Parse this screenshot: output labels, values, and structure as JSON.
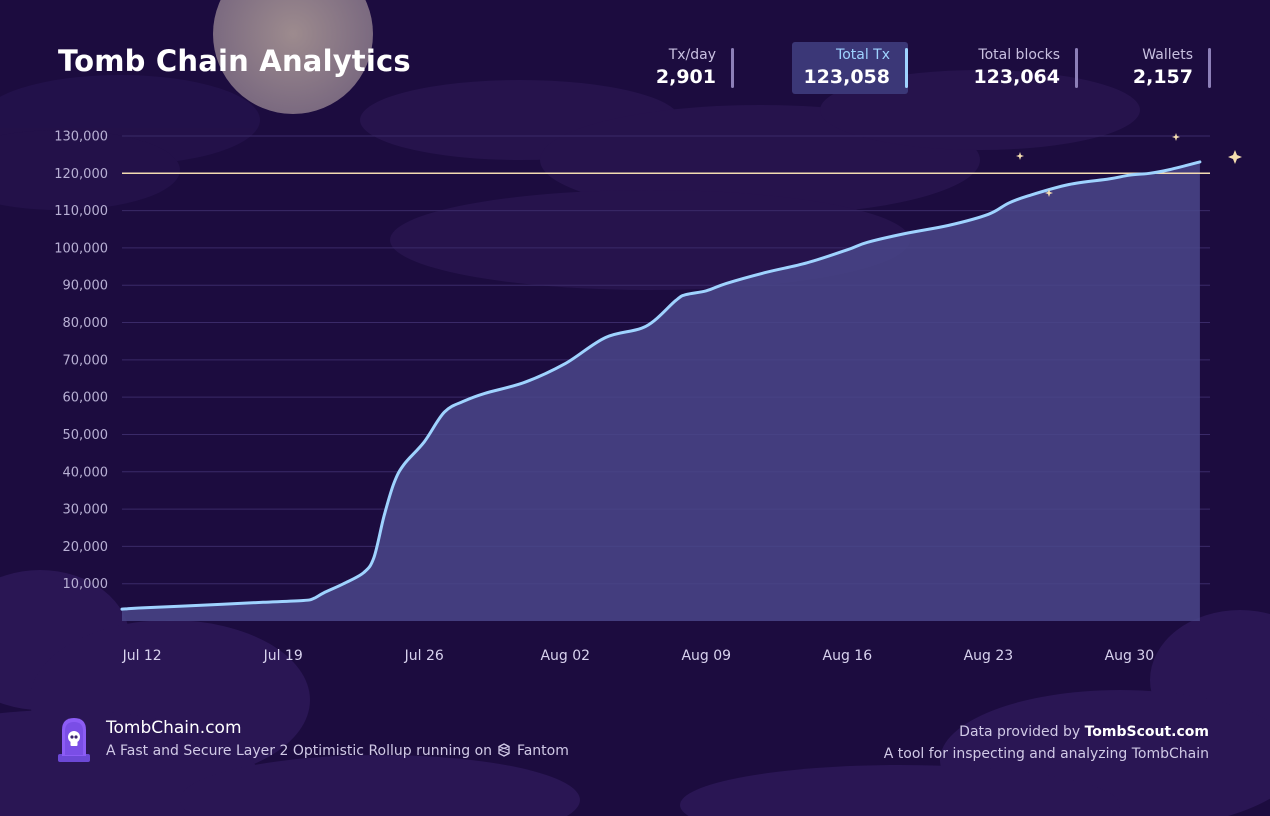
{
  "header": {
    "title": "Tomb Chain Analytics",
    "stats": [
      {
        "label": "Tx/day",
        "value": "2,901",
        "active": false
      },
      {
        "label": "Total Tx",
        "value": "123,058",
        "active": true
      },
      {
        "label": "Total blocks",
        "value": "123,064",
        "active": false
      },
      {
        "label": "Wallets",
        "value": "2,157",
        "active": false
      }
    ]
  },
  "chart_data": {
    "type": "area",
    "title": "Total Tx",
    "xlabel": "",
    "ylabel": "",
    "ylim": [
      0,
      130000
    ],
    "yticks": [
      "10,000",
      "20,000",
      "30,000",
      "40,000",
      "50,000",
      "60,000",
      "70,000",
      "80,000",
      "90,000",
      "100,000",
      "110,000",
      "120,000",
      "130,000"
    ],
    "ytick_values": [
      10000,
      20000,
      30000,
      40000,
      50000,
      60000,
      70000,
      80000,
      90000,
      100000,
      110000,
      120000,
      130000
    ],
    "xticks": [
      "Jul 12",
      "Jul 19",
      "Jul 26",
      "Aug 02",
      "Aug 09",
      "Aug 16",
      "Aug 23",
      "Aug 30"
    ],
    "xtick_days": [
      0,
      7,
      14,
      21,
      28,
      35,
      42,
      49
    ],
    "xlim": [
      -1,
      53
    ],
    "reference_line": {
      "value": 120000,
      "color": "#f3dcb2"
    },
    "line_color": "#9fd3ff",
    "fill_color": "#4a4789",
    "grid": true,
    "series": [
      {
        "name": "Total Tx",
        "x": [
          -1,
          0,
          2,
          4,
          6,
          8,
          8.5,
          9,
          10,
          11,
          11.5,
          12,
          12.5,
          13,
          14,
          15,
          16,
          17,
          19,
          21,
          23,
          25,
          26.5,
          27,
          28,
          29,
          31,
          33,
          35,
          36,
          38,
          40,
          42,
          43,
          44,
          46,
          48,
          49,
          50,
          51,
          52.5
        ],
        "values": [
          3200,
          3500,
          4000,
          4500,
          5000,
          5500,
          6000,
          7500,
          10000,
          13000,
          17000,
          28000,
          37000,
          42000,
          48000,
          56000,
          59000,
          61000,
          64000,
          69000,
          76000,
          79000,
          86000,
          87500,
          88500,
          90500,
          93500,
          96000,
          99500,
          101500,
          104000,
          106000,
          109000,
          112000,
          114000,
          117000,
          118500,
          119500,
          120000,
          121000,
          123058
        ]
      }
    ]
  },
  "footer": {
    "brand": "TombChain.com",
    "tagline_prefix": "A Fast and Secure Layer 2 Optimistic Rollup running on",
    "tagline_suffix": "Fantom",
    "credit_prefix": "Data provided by",
    "credit_site": "TombScout.com",
    "credit_desc": "A tool for inspecting and analyzing TombChain"
  },
  "colors": {
    "background": "#1c0c3f",
    "accent": "#9fd3ff",
    "moon": "#8b7a86"
  }
}
